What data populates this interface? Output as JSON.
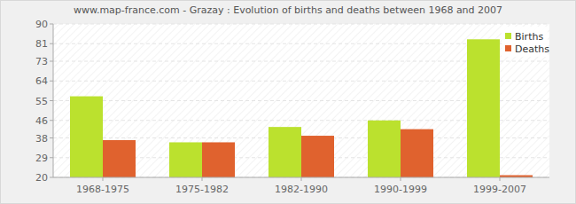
{
  "chart_data": {
    "type": "bar",
    "title": "www.map-france.com - Grazay : Evolution of births and deaths between 1968 and 2007",
    "categories": [
      "1968-1975",
      "1975-1982",
      "1982-1990",
      "1990-1999",
      "1999-2007"
    ],
    "series": [
      {
        "name": "Births",
        "color": "#bbe12e",
        "values": [
          57,
          36,
          43,
          46,
          83
        ]
      },
      {
        "name": "Deaths",
        "color": "#e0622e",
        "values": [
          37,
          36,
          39,
          42,
          21
        ]
      }
    ],
    "ylim": [
      20,
      90
    ],
    "yticks": [
      20,
      29,
      38,
      46,
      55,
      64,
      73,
      81,
      90
    ],
    "grid": true,
    "legend": "top-right"
  }
}
